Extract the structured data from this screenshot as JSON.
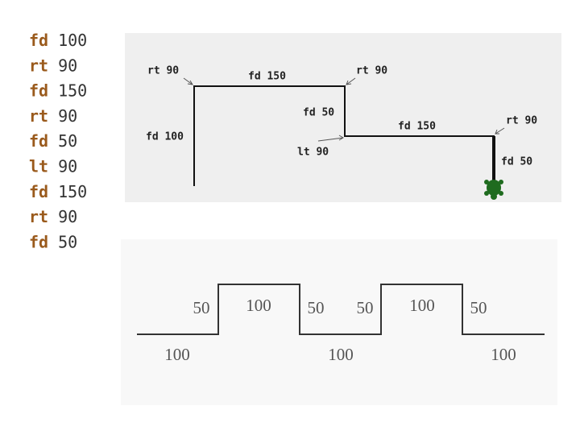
{
  "code": [
    {
      "cmd": "fd",
      "arg": 100
    },
    {
      "cmd": "rt",
      "arg": 90
    },
    {
      "cmd": "fd",
      "arg": 150
    },
    {
      "cmd": "rt",
      "arg": 90
    },
    {
      "cmd": "fd",
      "arg": 50
    },
    {
      "cmd": "lt",
      "arg": 90
    },
    {
      "cmd": "fd",
      "arg": 150
    },
    {
      "cmd": "rt",
      "arg": 90
    },
    {
      "cmd": "fd",
      "arg": 50
    }
  ],
  "turtle_labels": [
    "rt 90",
    "fd 150",
    "rt 90",
    "fd 100",
    "fd 50",
    "lt 90",
    "fd 150",
    "rt 90",
    "fd 50"
  ],
  "wave_labels": [
    "50",
    "100",
    "50",
    "50",
    "100",
    "50",
    "100",
    "100",
    "100"
  ]
}
